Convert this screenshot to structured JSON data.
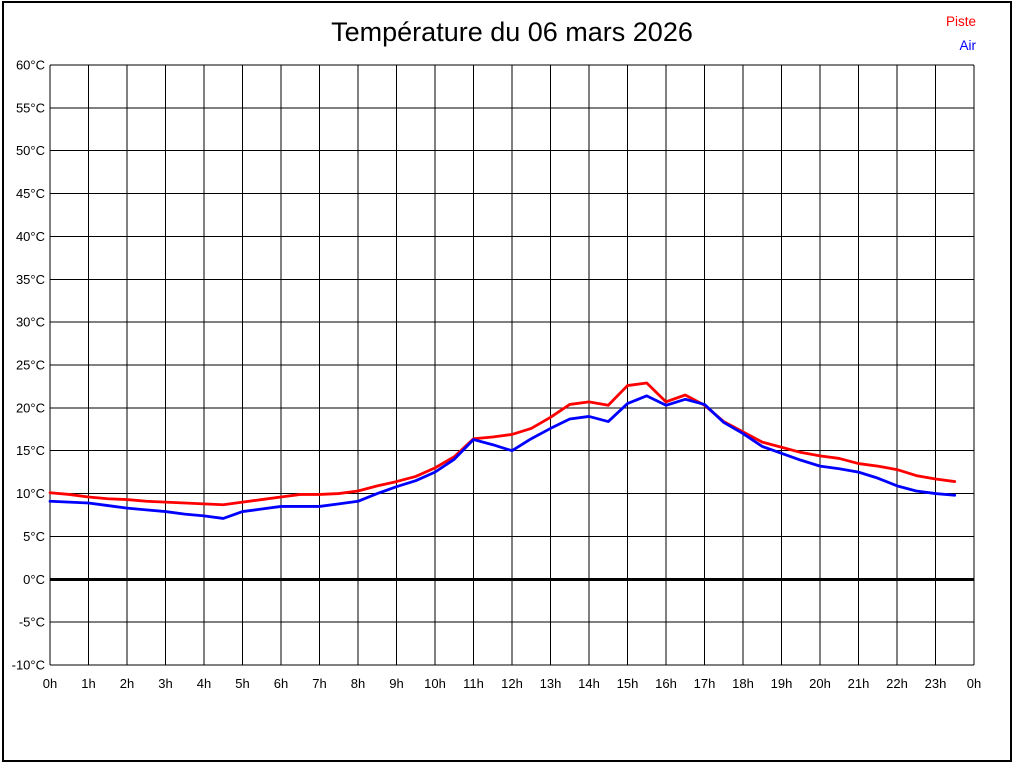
{
  "chart_data": {
    "type": "line",
    "title": "Température du 06 mars 2026",
    "xlabel": "",
    "ylabel": "",
    "x_range": [
      0,
      24
    ],
    "y_range": [
      -10,
      60
    ],
    "grid": true,
    "zero_line_at": 0,
    "legend_position": "top-right",
    "x_tick_labels": [
      "0h",
      "1h",
      "2h",
      "3h",
      "4h",
      "5h",
      "6h",
      "7h",
      "8h",
      "9h",
      "10h",
      "11h",
      "12h",
      "13h",
      "14h",
      "15h",
      "16h",
      "17h",
      "18h",
      "19h",
      "20h",
      "21h",
      "22h",
      "23h",
      "0h"
    ],
    "y_ticks": [
      60,
      55,
      50,
      45,
      40,
      35,
      30,
      25,
      20,
      15,
      10,
      5,
      0,
      -5,
      -10
    ],
    "y_tick_suffix": "°C",
    "x_start": 0,
    "x_step": 0.5,
    "series": [
      {
        "name": "Piste",
        "color": "#ff0000",
        "values": [
          10.1,
          9.9,
          9.6,
          9.4,
          9.3,
          9.1,
          9.0,
          8.9,
          8.8,
          8.7,
          9.0,
          9.3,
          9.6,
          9.9,
          9.9,
          10.0,
          10.3,
          10.9,
          11.4,
          12.0,
          13.0,
          14.3,
          16.4,
          16.6,
          16.9,
          17.6,
          18.9,
          20.4,
          20.7,
          20.3,
          22.6,
          22.9,
          20.7,
          21.5,
          20.3,
          18.4,
          17.2,
          16.0,
          15.4,
          14.8,
          14.4,
          14.1,
          13.5,
          13.2,
          12.8,
          12.1,
          11.7,
          11.4
        ]
      },
      {
        "name": "Air",
        "color": "#0000ff",
        "values": [
          9.1,
          9.0,
          8.9,
          8.6,
          8.3,
          8.1,
          7.9,
          7.6,
          7.4,
          7.1,
          7.9,
          8.2,
          8.5,
          8.5,
          8.5,
          8.8,
          9.1,
          10.0,
          10.8,
          11.5,
          12.5,
          14.0,
          16.3,
          15.7,
          15.0,
          16.4,
          17.6,
          18.7,
          19.0,
          18.4,
          20.5,
          21.4,
          20.3,
          21.0,
          20.4,
          18.3,
          17.0,
          15.5,
          14.7,
          13.9,
          13.2,
          12.9,
          12.5,
          11.8,
          10.9,
          10.3,
          10.0,
          9.8
        ]
      }
    ]
  }
}
